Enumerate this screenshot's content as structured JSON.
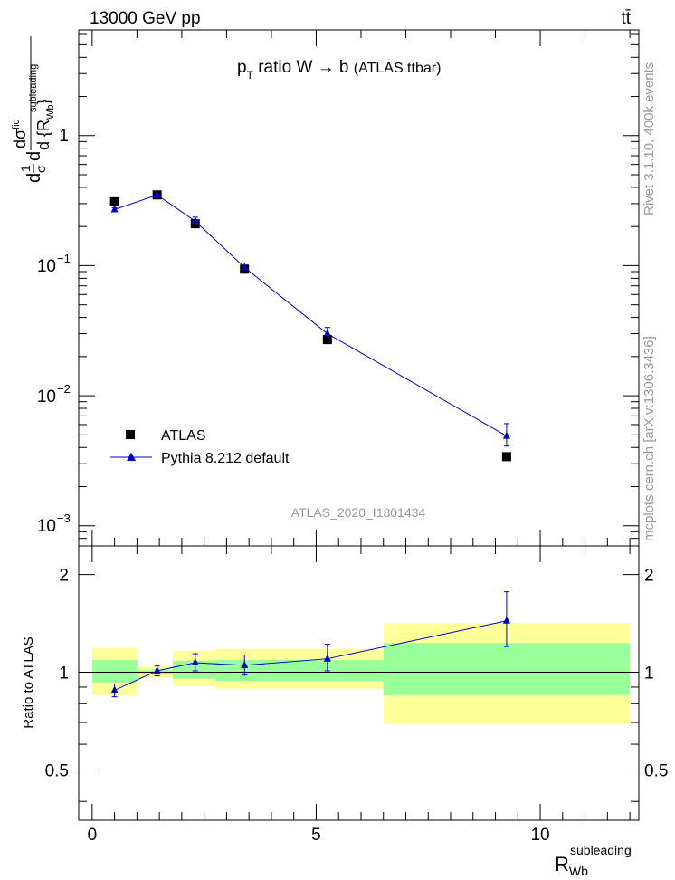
{
  "header": {
    "left": "13000 GeV pp",
    "right": "tt̄"
  },
  "side": {
    "rivet": "Rivet 3.1.10,  400k events",
    "mcplots": "mcplots.cern.ch [arXiv:1306.3436]"
  },
  "chart_data": [
    {
      "type": "scatter",
      "panel": "main",
      "title_main": "p",
      "title_sub": "T",
      "title_rest": " ratio W ",
      "title_arrow": "→",
      "title_tail": " b ",
      "title_paren": "(ATLAS ttbar)",
      "watermark": "ATLAS_2020_I1801434",
      "ylabel": {
        "d1": "d",
        "one": "1",
        "sigma": "σ",
        "d2": "d",
        "dsigma": "dσ",
        "fid": "fid",
        "dR": "d {R",
        "sup": "subleading",
        "sub": "Wb",
        "close": "}"
      },
      "yscale": "log",
      "ylim": [
        0.0007,
        6.5
      ],
      "xlim": [
        -0.3,
        12.2
      ],
      "ytick_labels": [
        {
          "base": "1",
          "exp": "",
          "value": 1
        },
        {
          "base": "10",
          "exp": "−1",
          "value": 0.1
        },
        {
          "base": "10",
          "exp": "−2",
          "value": 0.01
        },
        {
          "base": "10",
          "exp": "−3",
          "value": 0.001
        }
      ],
      "legend": [
        "ATLAS",
        "Pythia 8.212 default"
      ],
      "series": [
        {
          "name": "ATLAS",
          "x": [
            0.5,
            1.45,
            2.3,
            3.4,
            5.25,
            9.25
          ],
          "y": [
            0.31,
            0.35,
            0.21,
            0.094,
            0.027,
            0.0034
          ]
        },
        {
          "name": "Pythia 8.212 default",
          "x": [
            0.5,
            1.45,
            2.3,
            3.4,
            5.25,
            9.25
          ],
          "y": [
            0.27,
            0.35,
            0.22,
            0.097,
            0.03,
            0.0049
          ],
          "err_lo": [
            0.008,
            0.012,
            0.013,
            0.006,
            0.0025,
            0.0008
          ],
          "err_hi": [
            0.008,
            0.012,
            0.016,
            0.008,
            0.0035,
            0.0012
          ]
        }
      ]
    },
    {
      "type": "line",
      "panel": "ratio",
      "ylabel": "Ratio to ATLAS",
      "xlabel_main": "R",
      "xlabel_sup": "subleading",
      "xlabel_sub": "Wb",
      "yscale": "log",
      "ylim": [
        0.35,
        2.45
      ],
      "xlim": [
        -0.3,
        12.2
      ],
      "yticks": [
        0.5,
        1,
        2
      ],
      "ytick_labels": [
        "0.5",
        "1",
        "2"
      ],
      "xticks": [
        0,
        5,
        10
      ],
      "xtick_labels": [
        "0",
        "5",
        "10"
      ],
      "bands": {
        "edges": [
          0.0,
          1.0,
          1.8,
          2.75,
          4.0,
          6.5,
          12.0
        ],
        "yellow_lo": [
          0.85,
          0.96,
          0.905,
          0.89,
          0.89,
          0.69
        ],
        "yellow_hi": [
          1.19,
          1.04,
          1.165,
          1.18,
          1.18,
          1.42
        ],
        "green_lo": [
          0.93,
          0.985,
          0.955,
          0.94,
          0.94,
          0.85
        ],
        "green_hi": [
          1.09,
          1.015,
          1.085,
          1.09,
          1.09,
          1.23
        ]
      },
      "series": [
        {
          "name": "Pythia 8.212 default",
          "x": [
            0.5,
            1.45,
            2.3,
            3.4,
            5.25,
            9.25
          ],
          "y": [
            0.88,
            1.01,
            1.07,
            1.05,
            1.1,
            1.44
          ],
          "err_lo": [
            0.04,
            0.035,
            0.06,
            0.07,
            0.09,
            0.24
          ],
          "err_hi": [
            0.04,
            0.035,
            0.07,
            0.08,
            0.12,
            0.33
          ]
        }
      ]
    }
  ],
  "colors": {
    "mc": "#0000cc",
    "data": "#000000",
    "green": "#99ff99",
    "yellow": "#ffff99",
    "grey_text": "#999999"
  }
}
